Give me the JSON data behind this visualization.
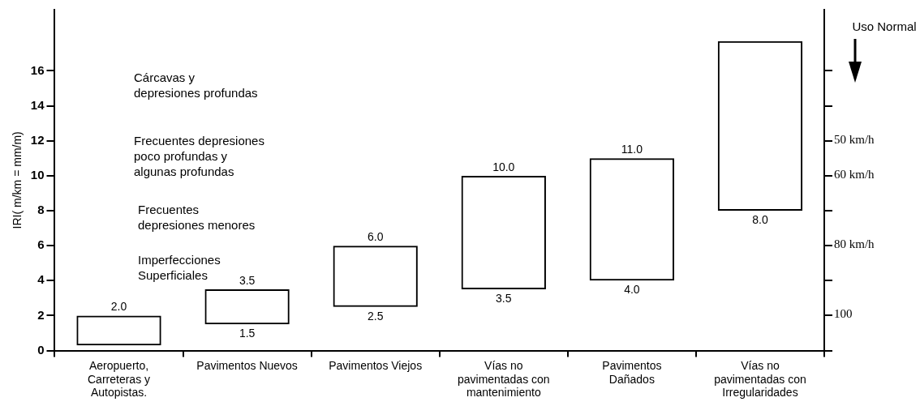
{
  "chart_data": {
    "type": "bar",
    "ylabel": "IRI( m/km = mm/m)",
    "categories": [
      "Aeropuerto, Carreteras y Autopistas.",
      "Pavimentos Nuevos",
      "Pavimentos Viejos",
      "Vías no pavimentadas con mantenimiento",
      "Pavimentos Dañados",
      "Vías no pavimentadas con Irregularidades"
    ],
    "series": [
      {
        "color": "#000000",
        "values": [
          1.7,
          2.0,
          3.5,
          6.5,
          7.0,
          9.7
        ],
        "base": [
          0.3,
          1.5,
          2.5,
          3.5,
          4.0,
          8.0
        ]
      }
    ],
    "ylim": [
      0,
      19.5
    ],
    "yticks": [
      0,
      2,
      4,
      6,
      8,
      10,
      12,
      14,
      16
    ],
    "grid": false,
    "legend": false,
    "annotations": [
      "Cárcavas y depresiones profundas",
      "Frecuentes depresiones poco profundas y algunas profundas",
      "Frecuentes depresiones menores",
      "Imperfecciones Superficiales",
      "50 km/h",
      "60 km/h",
      "80 km/h",
      "100",
      "Uso Normal",
      {
        "text": "2.0",
        "x": "Aeropuerto, Carreteras y Autopistas.",
        "y": 2.0
      },
      {
        "text": "3.5",
        "x": "Pavimentos Nuevos",
        "y": 3.5
      },
      {
        "text": "1.5",
        "x": "Pavimentos Nuevos",
        "y": 1.5
      },
      {
        "text": "6.0",
        "x": "Pavimentos Viejos",
        "y": 6.0
      },
      {
        "text": "2.5",
        "x": "Pavimentos Viejos",
        "y": 2.5
      },
      {
        "text": "10.0",
        "x": "Vías no pavimentadas con mantenimiento",
        "y": 10.0
      },
      {
        "text": "3.5",
        "x": "Vías no pavimentadas con mantenimiento",
        "y": 3.5
      },
      {
        "text": "11.0",
        "x": "Pavimentos Dañados",
        "y": 11.0
      },
      {
        "text": "4.0",
        "x": "Pavimentos Dañados",
        "y": 4.0
      },
      {
        "text": "8.0",
        "x": "Vías no pavimentadas con Irregularidades",
        "y": 8.0
      }
    ]
  }
}
